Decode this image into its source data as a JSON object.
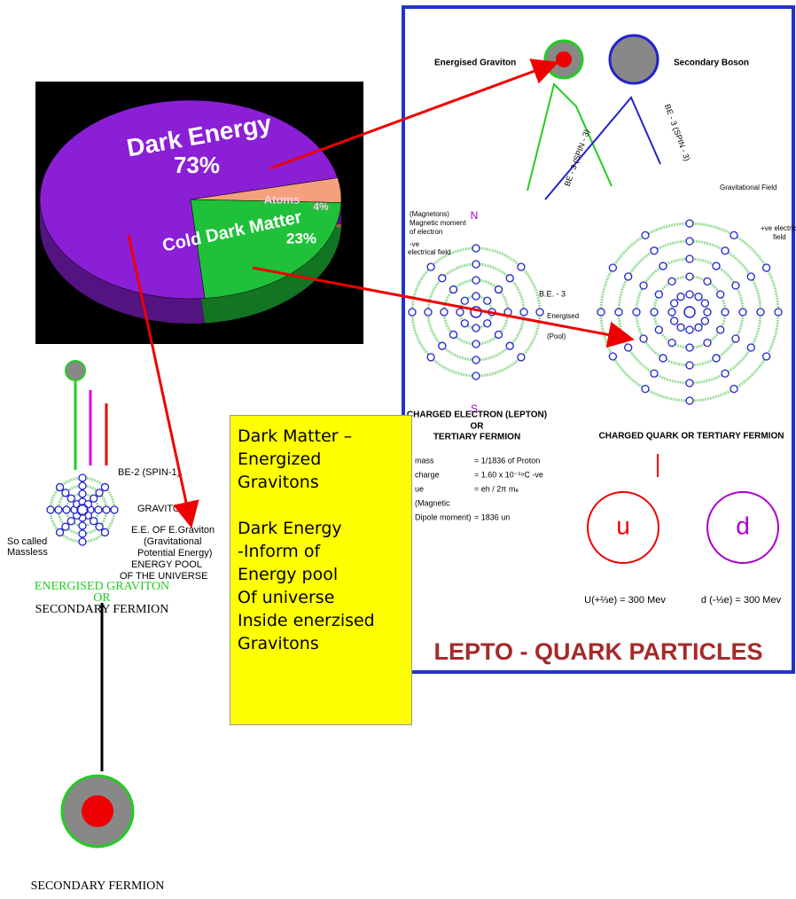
{
  "chart_data": {
    "type": "pie",
    "categories": [
      "Dark Energy",
      "Cold Dark Matter",
      "Atoms"
    ],
    "values": [
      73,
      23,
      4
    ],
    "value_labels": [
      "73%",
      "23%",
      "4%"
    ],
    "colors": [
      "#8a1fd6",
      "#1fc13a",
      "#f4a07a"
    ]
  },
  "graviton": {
    "be2": "BE-2 (SPIN-1)",
    "graviton": "GRAVITON",
    "ee": [
      "E.E. OF E.Graviton",
      "(Gravitational",
      "Potential Energy)",
      "ENERGY POOL",
      "OF THE UNIVERSE"
    ],
    "massless": [
      "So called",
      "Massless"
    ],
    "caption": [
      "ENERGISED GRAVITON",
      "OR",
      "SECONDARY FERMION"
    ],
    "bottom": "SECONDARY FERMION"
  },
  "note": {
    "lines": [
      "Dark Matter –",
      "Energized",
      "Gravitons",
      "Dark Energy",
      "-Inform of",
      "Energy pool",
      "Of universe",
      "Inside enerzised",
      "Gravitons"
    ]
  },
  "panel": {
    "energised": "Energised Graviton",
    "boson": "Secondary Boson",
    "be3": "BE - 3 (SPIN - 3)",
    "field": "Gravitational Field",
    "magneton": [
      "(Magnetons)",
      "Magnetic moment",
      "of electron"
    ],
    "neg": [
      "-ve",
      "electrical field"
    ],
    "pos": [
      "+ve electrical",
      "field"
    ],
    "n": "N",
    "s": "S",
    "b3": "B.E. - 3",
    "pool": [
      "Energised",
      "(Pool)"
    ],
    "electron": [
      "CHARGED ELECTRON (LEPTON)",
      "OR",
      "TERTIARY FERMION"
    ],
    "quark": "CHARGED QUARK OR TERTIARY FERMION",
    "props": [
      [
        "mass",
        "= 1/1836 of Proton"
      ],
      [
        "charge",
        "= 1.60 x 10⁻¹⁹C -ve"
      ],
      [
        "ue",
        "= eh / 2π mₑ"
      ],
      [
        "(Magnetic",
        ""
      ],
      [
        "Dipole moment)",
        "= 1836 un"
      ]
    ],
    "u": "u",
    "d": "d",
    "ueq": "U(+⅔e) = 300 Mev",
    "deq": "d (-⅓e) = 300 Mev",
    "title": "LEPTO - QUARK PARTICLES"
  }
}
